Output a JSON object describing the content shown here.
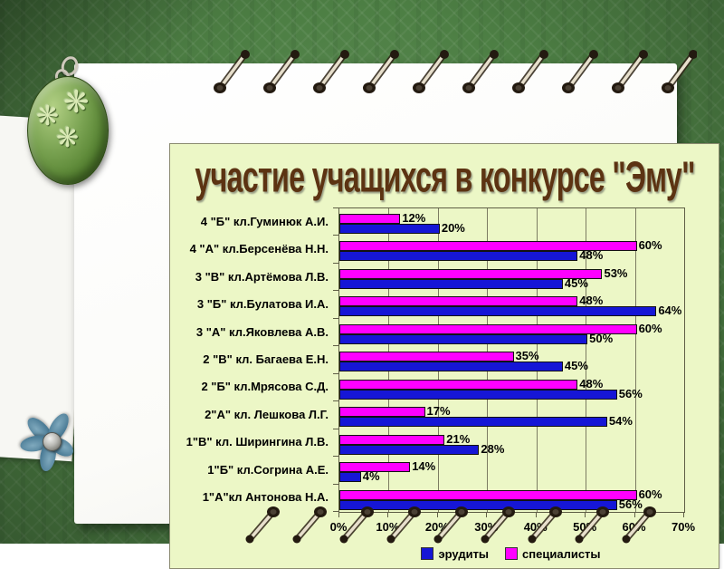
{
  "slide": {
    "title": "участие учащихся в конкурсе \"Эму\""
  },
  "colors": {
    "background_green": "#4d7f44",
    "panel_background": "#ecf7c6",
    "title_text": "#5c3312",
    "series_erudites": "#1616d6",
    "series_specialists": "#ff00ff"
  },
  "chart_data": {
    "type": "bar",
    "orientation": "horizontal",
    "title": "участие учащихся в конкурсе \"Эму\"",
    "categories": [
      "4 \"Б\" кл.Гуминюк А.И.",
      "4 \"А\" кл.Берсенёва Н.Н.",
      "3 \"В\" кл.Артёмова Л.В.",
      "3 \"Б\" кл.Булатова И.А.",
      "3 \"А\" кл.Яковлева А.В.",
      "2 \"В\" кл. Багаева Е.Н.",
      "2 \"Б\" кл.Мрясова С.Д.",
      "2\"А\" кл. Лешкова Л.Г.",
      "1\"В\" кл. Ширингина Л.В.",
      "1\"Б\" кл.Согрина А.Е.",
      "1\"А\"кл Антонова Н.А."
    ],
    "series": [
      {
        "name": "эрудиты",
        "color": "#1616d6",
        "values": [
          20,
          48,
          45,
          64,
          50,
          45,
          56,
          54,
          28,
          4,
          56
        ]
      },
      {
        "name": "специалисты",
        "color": "#ff00ff",
        "values": [
          12,
          60,
          53,
          48,
          60,
          35,
          48,
          17,
          21,
          14,
          60
        ]
      }
    ],
    "x_ticks": [
      "0%",
      "10%",
      "20%",
      "30%",
      "40%",
      "50%",
      "60%",
      "70%"
    ],
    "xlim": [
      0,
      70
    ],
    "data_label_suffix": "%",
    "grid": true,
    "legend_position": "bottom"
  }
}
